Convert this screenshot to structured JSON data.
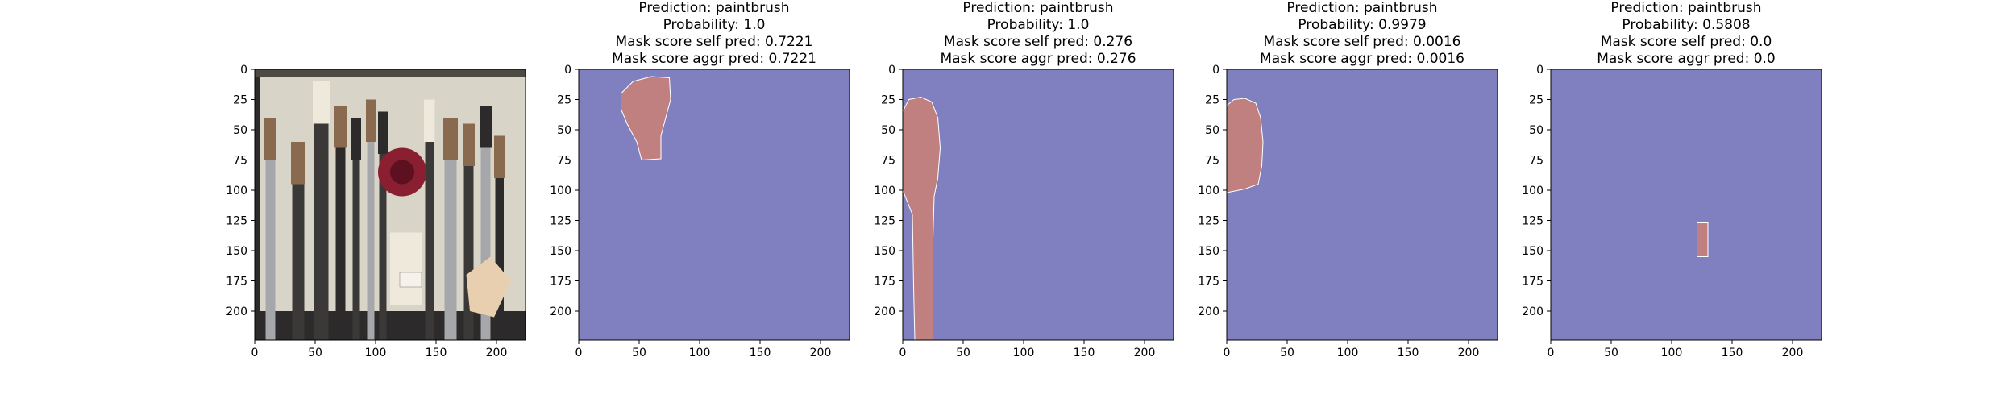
{
  "figure": {
    "panel_titles": [
      [],
      [
        "Prediction: paintbrush",
        "Probability: 1.0",
        "Mask score self pred: 0.7221",
        "Mask score aggr pred: 0.7221"
      ],
      [
        "Prediction: paintbrush",
        "Probability: 1.0",
        "Mask score self pred: 0.276",
        "Mask score aggr pred: 0.276"
      ],
      [
        "Prediction: paintbrush",
        "Probability: 0.9979",
        "Mask score self pred: 0.0016",
        "Mask score aggr pred: 0.0016"
      ],
      [
        "Prediction: paintbrush",
        "Probability: 0.5808",
        "Mask score self pred: 0.0",
        "Mask score aggr pred: 0.0"
      ]
    ]
  },
  "chart_data": [
    {
      "type": "heatmap",
      "content": "photo",
      "title": "",
      "xlim": [
        0,
        224
      ],
      "ylim": [
        224,
        0
      ],
      "xticks": [
        0,
        50,
        100,
        150,
        200
      ],
      "yticks": [
        0,
        25,
        50,
        75,
        100,
        125,
        150,
        175,
        200
      ],
      "grid": false,
      "colors": {
        "background": "#d9d4c8",
        "dark": "#2c2a2a",
        "handle": "#3a3938",
        "silver": "#a5a7aa",
        "bristle": "#8a6a4e",
        "blush": "#8a1f32",
        "light": "#efe9dc",
        "sponge": "#e8cfb0"
      }
    },
    {
      "type": "heatmap",
      "content": "mask",
      "title": "Prediction: paintbrush",
      "xlim": [
        0,
        224
      ],
      "ylim": [
        224,
        0
      ],
      "xticks": [
        0,
        50,
        100,
        150,
        200
      ],
      "yticks": [
        0,
        25,
        50,
        75,
        100,
        125,
        150,
        175,
        200
      ],
      "grid": false,
      "colors": {
        "background": "#8080c0",
        "mask": "#c08080"
      },
      "regions": [
        [
          [
            35,
            20
          ],
          [
            45,
            10
          ],
          [
            60,
            6
          ],
          [
            75,
            7
          ],
          [
            76,
            25
          ],
          [
            72,
            40
          ],
          [
            68,
            55
          ],
          [
            68,
            74
          ],
          [
            52,
            75
          ],
          [
            48,
            60
          ],
          [
            40,
            45
          ],
          [
            35,
            33
          ]
        ]
      ]
    },
    {
      "type": "heatmap",
      "content": "mask",
      "title": "Prediction: paintbrush",
      "xlim": [
        0,
        224
      ],
      "ylim": [
        224,
        0
      ],
      "xticks": [
        0,
        50,
        100,
        150,
        200
      ],
      "yticks": [
        0,
        25,
        50,
        75,
        100,
        125,
        150,
        175,
        200
      ],
      "grid": false,
      "colors": {
        "background": "#8080c0",
        "mask": "#c08080"
      },
      "regions": [
        [
          [
            0,
            35
          ],
          [
            5,
            25
          ],
          [
            15,
            23
          ],
          [
            24,
            27
          ],
          [
            29,
            40
          ],
          [
            31,
            65
          ],
          [
            29,
            90
          ],
          [
            26,
            105
          ],
          [
            25,
            140
          ],
          [
            25,
            224
          ],
          [
            10,
            224
          ],
          [
            9,
            180
          ],
          [
            8,
            120
          ],
          [
            2,
            105
          ],
          [
            0,
            100
          ]
        ]
      ]
    },
    {
      "type": "heatmap",
      "content": "mask",
      "title": "Prediction: paintbrush",
      "xlim": [
        0,
        224
      ],
      "ylim": [
        224,
        0
      ],
      "xticks": [
        0,
        50,
        100,
        150,
        200
      ],
      "yticks": [
        0,
        25,
        50,
        75,
        100,
        125,
        150,
        175,
        200
      ],
      "grid": false,
      "colors": {
        "background": "#8080c0",
        "mask": "#c08080"
      },
      "regions": [
        [
          [
            0,
            30
          ],
          [
            6,
            25
          ],
          [
            15,
            24
          ],
          [
            24,
            28
          ],
          [
            28,
            40
          ],
          [
            30,
            60
          ],
          [
            29,
            80
          ],
          [
            26,
            95
          ],
          [
            15,
            99
          ],
          [
            5,
            101
          ],
          [
            0,
            102
          ]
        ]
      ]
    },
    {
      "type": "heatmap",
      "content": "mask",
      "title": "Prediction: paintbrush",
      "xlim": [
        0,
        224
      ],
      "ylim": [
        224,
        0
      ],
      "xticks": [
        0,
        50,
        100,
        150,
        200
      ],
      "yticks": [
        0,
        25,
        50,
        75,
        100,
        125,
        150,
        175,
        200
      ],
      "grid": false,
      "colors": {
        "background": "#8080c0",
        "mask": "#c08080"
      },
      "regions": [
        [
          [
            121,
            127
          ],
          [
            130,
            127
          ],
          [
            130,
            155
          ],
          [
            121,
            155
          ]
        ]
      ]
    }
  ]
}
